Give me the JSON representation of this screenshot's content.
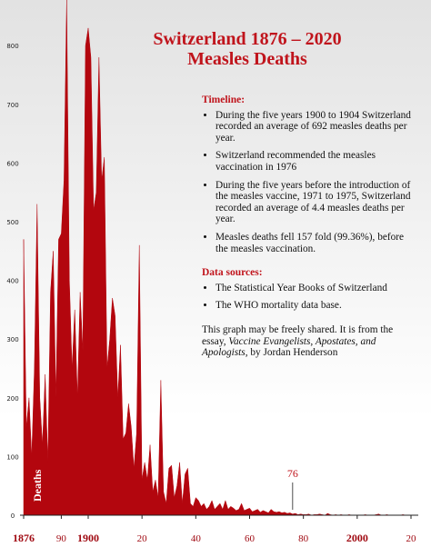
{
  "chart_data": {
    "type": "area",
    "title": [
      "Switzerland 1876 – 2020",
      "Measles Deaths"
    ],
    "ylabel": "Deaths",
    "color": "#b3060e",
    "x": [
      1876,
      1877,
      1878,
      1879,
      1880,
      1881,
      1882,
      1883,
      1884,
      1885,
      1886,
      1887,
      1888,
      1889,
      1890,
      1891,
      1892,
      1893,
      1894,
      1895,
      1896,
      1897,
      1898,
      1899,
      1900,
      1901,
      1902,
      1903,
      1904,
      1905,
      1906,
      1907,
      1908,
      1909,
      1910,
      1911,
      1912,
      1913,
      1914,
      1915,
      1916,
      1917,
      1918,
      1919,
      1920,
      1921,
      1922,
      1923,
      1924,
      1925,
      1926,
      1927,
      1928,
      1929,
      1930,
      1931,
      1932,
      1933,
      1934,
      1935,
      1936,
      1937,
      1938,
      1939,
      1940,
      1941,
      1942,
      1943,
      1944,
      1945,
      1946,
      1947,
      1948,
      1949,
      1950,
      1951,
      1952,
      1953,
      1954,
      1955,
      1956,
      1957,
      1958,
      1959,
      1960,
      1961,
      1962,
      1963,
      1964,
      1965,
      1966,
      1967,
      1968,
      1969,
      1970,
      1971,
      1972,
      1973,
      1974,
      1975,
      1976,
      1977,
      1978,
      1979,
      1980,
      1981,
      1982,
      1983,
      1984,
      1985,
      1986,
      1987,
      1988,
      1989,
      1990,
      1991,
      1992,
      1993,
      1994,
      1995,
      1996,
      1997,
      1998,
      1999,
      2000,
      2001,
      2002,
      2003,
      2004,
      2005,
      2006,
      2007,
      2008,
      2009,
      2010,
      2011,
      2012,
      2013,
      2014,
      2015,
      2016,
      2017,
      2018,
      2019,
      2020
    ],
    "values": [
      470,
      150,
      200,
      100,
      250,
      530,
      200,
      120,
      240,
      90,
      380,
      450,
      200,
      470,
      480,
      570,
      880,
      400,
      250,
      350,
      200,
      380,
      280,
      800,
      830,
      780,
      520,
      550,
      780,
      570,
      610,
      250,
      300,
      370,
      340,
      200,
      290,
      130,
      140,
      190,
      150,
      80,
      140,
      460,
      60,
      90,
      60,
      120,
      40,
      60,
      30,
      230,
      40,
      20,
      80,
      85,
      30,
      50,
      90,
      20,
      70,
      80,
      20,
      15,
      30,
      25,
      15,
      20,
      10,
      15,
      25,
      10,
      15,
      20,
      10,
      25,
      10,
      15,
      12,
      8,
      10,
      20,
      8,
      10,
      12,
      6,
      8,
      10,
      5,
      8,
      6,
      4,
      10,
      6,
      5,
      6,
      4,
      5,
      3,
      4,
      2,
      3,
      1,
      2,
      1,
      1,
      2,
      0,
      1,
      1,
      2,
      1,
      0,
      3,
      1,
      0,
      1,
      0,
      1,
      0,
      0,
      1,
      0,
      0,
      0,
      0,
      0,
      1,
      0,
      0,
      0,
      1,
      2,
      0,
      0,
      1,
      0,
      0,
      0,
      0,
      0,
      1,
      0,
      0,
      0
    ],
    "xlim": [
      1876,
      2020
    ],
    "ylim": [
      0,
      877
    ],
    "yticks": [
      0,
      100,
      200,
      300,
      400,
      500,
      600,
      700,
      800
    ],
    "xticks": [
      {
        "value": 1876,
        "label": "1876"
      },
      {
        "value": 1890,
        "label": "90"
      },
      {
        "value": 1900,
        "label": "1900"
      },
      {
        "value": 1920,
        "label": "20"
      },
      {
        "value": 1940,
        "label": "40"
      },
      {
        "value": 1960,
        "label": "60"
      },
      {
        "value": 1980,
        "label": "80"
      },
      {
        "value": 2000,
        "label": "2000"
      },
      {
        "value": 2020,
        "label": "20"
      }
    ],
    "annotations": [
      {
        "text": "76",
        "x": 1976
      }
    ]
  },
  "notes": {
    "timeline_heading": "Timeline:",
    "timeline": [
      "During the five years 1900 to 1904 Switzerland recorded an average of 692 measles deaths per year.",
      "Switzerland recommended the measles vaccination in 1976",
      "During the five years before the introduction of the measles vaccine, 1971 to 1975, Switzerland recorded an average of 4.4 measles deaths per year.",
      "Measles deaths fell 157 fold (99.36%), before the measles vaccination."
    ],
    "sources_heading": "Data sources:",
    "sources": [
      "The Statistical Year Books of Switzerland",
      "The WHO mortality data base."
    ],
    "share": [
      "This graph may be freely shared. It is from the essay, ",
      "Vaccine Evangelists, Apostates, and Apologists",
      ", by Jordan Henderson"
    ]
  }
}
